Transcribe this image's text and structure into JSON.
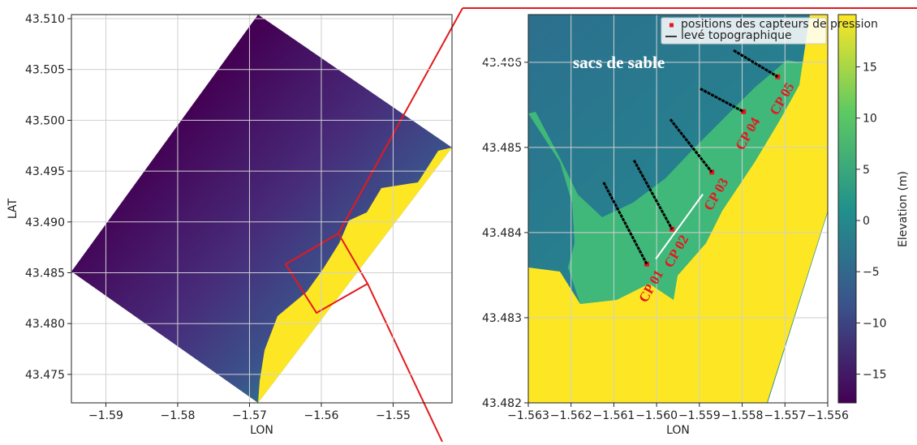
{
  "chart_data": [
    {
      "type": "map",
      "xlabel": "LON",
      "ylabel": "LAT",
      "xlim": [
        -1.5948,
        -1.5418
      ],
      "ylim": [
        43.4722,
        43.5104
      ],
      "xticks": [
        {
          "value": -1.59,
          "label": "−1.59"
        },
        {
          "value": -1.58,
          "label": "−1.58"
        },
        {
          "value": -1.57,
          "label": "−1.57"
        },
        {
          "value": -1.56,
          "label": "−1.56"
        },
        {
          "value": -1.55,
          "label": "−1.55"
        }
      ],
      "yticks": [
        43.475,
        {
          "value": 43.48,
          "label": "43.480"
        },
        43.485,
        {
          "value": 43.49,
          "label": "43.490"
        },
        43.495,
        {
          "value": 43.5,
          "label": "43.500"
        },
        43.505,
        {
          "value": 43.51,
          "label": "43.510"
        }
      ],
      "grid": true
    },
    {
      "type": "map",
      "xlabel": "LON",
      "xlim": [
        -1.563,
        -1.556
      ],
      "ylim": [
        43.482,
        43.48656
      ],
      "xticks": [
        {
          "value": -1.563,
          "label": "−1.563"
        },
        {
          "value": -1.562,
          "label": "−1.562"
        },
        {
          "value": -1.561,
          "label": "−1.561"
        },
        {
          "value": -1.56,
          "label": "−1.560"
        },
        {
          "value": -1.559,
          "label": "−1.559"
        },
        {
          "value": -1.558,
          "label": "−1.558"
        },
        {
          "value": -1.557,
          "label": "−1.557"
        },
        {
          "value": -1.556,
          "label": "−1.556"
        }
      ],
      "yticks": [
        43.482,
        43.483,
        43.484,
        43.485,
        43.486
      ],
      "grid": true,
      "legend": "upper right",
      "series": [
        {
          "name": "positions des capteurs de pression",
          "color": "#e8161c",
          "x": [
            -1.56023,
            -1.55964,
            -1.55871,
            -1.55797,
            -1.55717
          ],
          "y": [
            43.48363,
            43.48404,
            43.48471,
            43.48542,
            43.48583
          ],
          "labels": [
            "CP 01",
            "CP 02",
            "CP 03",
            "CP 04",
            "CP 05"
          ]
        },
        {
          "name": "levé topographique",
          "color": "#000000",
          "lines": [
            {
              "x": [
                -1.56124,
                -1.56023
              ],
              "y": [
                43.48459,
                43.48363
              ]
            },
            {
              "x": [
                -1.56053,
                -1.55964
              ],
              "y": [
                43.48485,
                43.48404
              ]
            },
            {
              "x": [
                -1.55968,
                -1.55871
              ],
              "y": [
                43.48533,
                43.48471
              ]
            },
            {
              "x": [
                -1.55898,
                -1.55797
              ],
              "y": [
                43.48569,
                43.48542
              ]
            },
            {
              "x": [
                -1.5582,
                -1.55717
              ],
              "y": [
                43.48614,
                43.48583
              ]
            }
          ]
        }
      ],
      "annotation": {
        "text": "sacs de sable",
        "x": [
          -1.56002,
          -1.55892
        ],
        "y": [
          43.48369,
          43.48445
        ]
      },
      "colorbar": {
        "label": "Elevation (m)",
        "clim": [
          -17.8,
          20.1
        ],
        "ticks": [
          {
            "value": -15,
            "label": "−15"
          },
          {
            "value": -10,
            "label": "−10"
          },
          {
            "value": -5,
            "label": "−5"
          },
          0,
          5,
          10,
          15
        ]
      }
    }
  ]
}
